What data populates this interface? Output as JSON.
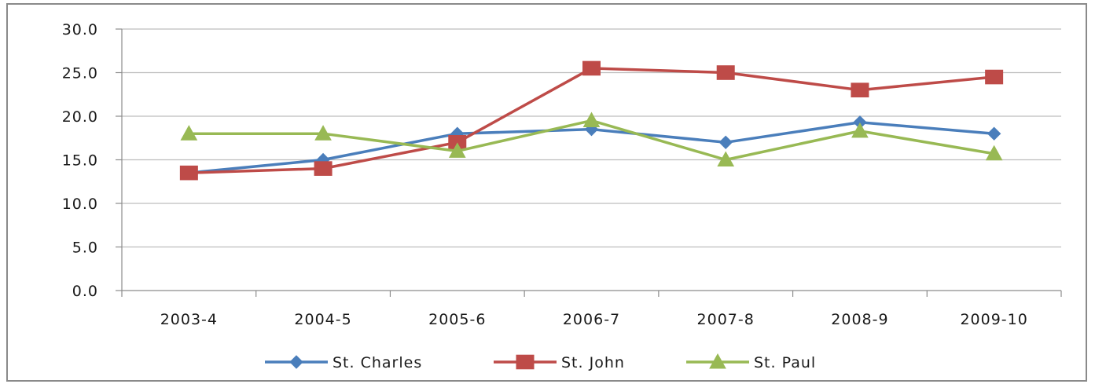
{
  "chart_data": {
    "type": "line",
    "title": "",
    "xlabel": "",
    "ylabel": "",
    "categories": [
      "2003-4",
      "2004-5",
      "2005-6",
      "2006-7",
      "2007-8",
      "2008-9",
      "2009-10"
    ],
    "ylim": [
      0,
      30
    ],
    "yticks": [
      "0.0",
      "5.0",
      "10.0",
      "15.0",
      "20.0",
      "25.0",
      "30.0"
    ],
    "grid": true,
    "legend_position": "bottom",
    "series": [
      {
        "name": "St. Charles",
        "color": "#4a7ebb",
        "marker": "diamond",
        "values": [
          13.5,
          15.0,
          18.0,
          18.5,
          17.0,
          19.3,
          18.0
        ]
      },
      {
        "name": "St. John",
        "color": "#be4b48",
        "marker": "square",
        "values": [
          13.5,
          14.0,
          17.0,
          25.5,
          25.0,
          23.0,
          24.5
        ]
      },
      {
        "name": "St. Paul",
        "color": "#98b954",
        "marker": "triangle",
        "values": [
          18.0,
          18.0,
          16.0,
          19.5,
          15.0,
          18.3,
          15.7
        ]
      }
    ]
  }
}
